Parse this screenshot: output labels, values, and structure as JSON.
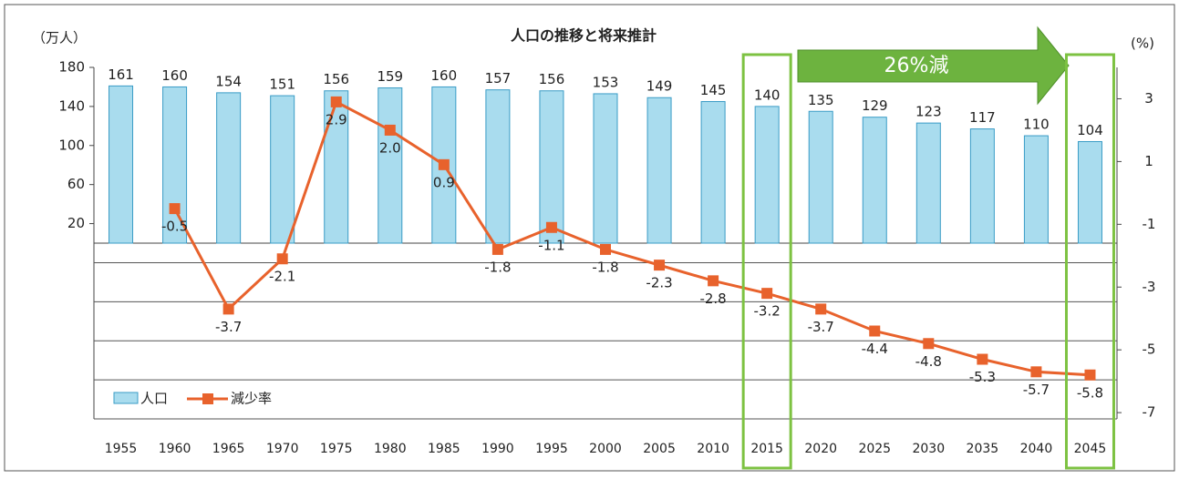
{
  "chart_data": {
    "type": "bar-line",
    "title": "人口の推移と将来推計",
    "y_axis_label": "（万人）",
    "y2_axis_label": "(%)",
    "annotation": "26%減",
    "categories": [
      "1955",
      "1960",
      "1965",
      "1970",
      "1975",
      "1980",
      "1985",
      "1990",
      "1995",
      "2000",
      "2005",
      "2010",
      "2015",
      "2020",
      "2025",
      "2030",
      "2035",
      "2040",
      "2045"
    ],
    "series": [
      {
        "name": "人口",
        "type": "bar",
        "color": "#a9dcee",
        "values": [
          161,
          160,
          154,
          151,
          156,
          159,
          160,
          157,
          156,
          153,
          149,
          145,
          140,
          135,
          129,
          123,
          117,
          110,
          104
        ]
      },
      {
        "name": "減少率",
        "type": "line",
        "axis": "y2",
        "color": "#e8622c",
        "values": [
          null,
          -0.5,
          -3.7,
          -2.1,
          2.9,
          2.0,
          0.9,
          -1.8,
          -1.1,
          -1.8,
          -2.3,
          -2.8,
          -3.2,
          -3.7,
          -4.4,
          -4.8,
          -5.3,
          -5.7,
          -5.8
        ],
        "value_labels": [
          null,
          "-0.5",
          "-3.7",
          "-2.1",
          "2.9",
          "2.0",
          "0.9",
          "-1.8",
          "-1.1",
          "-1.8",
          "-2.3",
          "-2.8",
          "-3.2",
          "-3.7",
          "-4.4",
          "-4.8",
          "-5.3",
          "-5.7",
          "-5.8"
        ]
      }
    ],
    "ylim": [
      -180,
      180
    ],
    "yticks": [
      20,
      60,
      100,
      140,
      180
    ],
    "ygrid": [
      -20,
      -60,
      -100,
      -140,
      -180
    ],
    "y2lim": [
      -7.2,
      4.0
    ],
    "y2ticks": [
      3,
      1,
      -1,
      -3,
      -5,
      -7
    ]
  }
}
